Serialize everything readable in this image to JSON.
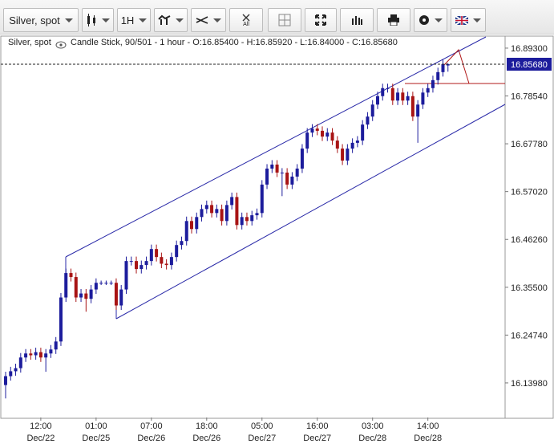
{
  "toolbar": {
    "instrument": "Silver, spot",
    "timeframe": "1H",
    "all_label": "All"
  },
  "chart_data": {
    "type": "candlestick",
    "title": "Silver, spot",
    "subtitle": "Candle Stick, 90/501 - 1 hour - O:16.85400 - H:16.85920 - L:16.84000 - C:16.85680",
    "categories": [
      null,
      null,
      null,
      null,
      null,
      null,
      null,
      {
        "time": "12:00",
        "date": "Dec/22"
      },
      null,
      null,
      null,
      null,
      null,
      null,
      null,
      null,
      null,
      null,
      {
        "time": "01:00",
        "date": "Dec/25"
      },
      null,
      null,
      null,
      null,
      null,
      null,
      null,
      null,
      null,
      null,
      {
        "time": "07:00",
        "date": "Dec/26"
      },
      null,
      null,
      null,
      null,
      null,
      null,
      null,
      null,
      null,
      null,
      {
        "time": "18:00",
        "date": "Dec/26"
      },
      null,
      null,
      null,
      null,
      null,
      null,
      null,
      null,
      null,
      null,
      {
        "time": "05:00",
        "date": "Dec/27"
      },
      null,
      null,
      null,
      null,
      null,
      null,
      null,
      null,
      null,
      null,
      {
        "time": "16:00",
        "date": "Dec/27"
      },
      null,
      null,
      null,
      null,
      null,
      null,
      null,
      null,
      null,
      null,
      {
        "time": "03:00",
        "date": "Dec/28"
      },
      null,
      null,
      null,
      null,
      null,
      null,
      null,
      null,
      null,
      null,
      {
        "time": "14:00",
        "date": "Dec/28"
      },
      null,
      null,
      null,
      null
    ],
    "open": [
      16.135,
      16.155,
      16.166,
      16.173,
      16.197,
      16.206,
      16.202,
      16.209,
      16.197,
      16.206,
      16.215,
      16.233,
      16.332,
      16.387,
      16.378,
      16.332,
      16.341,
      16.329,
      16.35,
      16.365,
      16.365,
      16.365,
      16.365,
      16.314,
      16.35,
      16.414,
      16.414,
      16.396,
      16.405,
      16.414,
      16.441,
      16.423,
      16.408,
      16.405,
      16.423,
      16.45,
      16.459,
      16.504,
      16.486,
      16.513,
      16.531,
      16.54,
      16.522,
      16.531,
      16.504,
      16.54,
      16.558,
      16.495,
      16.513,
      16.504,
      16.517,
      16.522,
      16.586,
      16.622,
      16.631,
      16.613,
      16.613,
      16.586,
      16.604,
      16.622,
      16.667,
      16.703,
      16.712,
      16.707,
      16.694,
      16.703,
      16.685,
      16.667,
      16.64,
      16.667,
      16.68,
      16.685,
      16.721,
      16.739,
      16.766,
      16.785,
      16.803,
      16.803,
      16.775,
      16.793,
      16.775,
      16.785,
      16.739,
      16.766,
      16.793,
      16.803,
      16.821,
      16.839,
      16.854
    ],
    "high": [
      16.165,
      16.176,
      16.183,
      16.207,
      16.216,
      16.216,
      16.219,
      16.219,
      16.216,
      16.225,
      16.243,
      16.342,
      16.397,
      16.397,
      16.388,
      16.351,
      16.351,
      16.36,
      16.375,
      16.37,
      16.37,
      16.37,
      16.375,
      16.36,
      16.424,
      16.424,
      16.424,
      16.415,
      16.424,
      16.451,
      16.451,
      16.433,
      16.418,
      16.433,
      16.46,
      16.469,
      16.514,
      16.514,
      16.523,
      16.541,
      16.55,
      16.55,
      16.541,
      16.541,
      16.55,
      16.568,
      16.568,
      16.523,
      16.523,
      16.527,
      16.532,
      16.596,
      16.632,
      16.641,
      16.641,
      16.623,
      16.623,
      16.614,
      16.632,
      16.677,
      16.713,
      16.722,
      16.722,
      16.717,
      16.713,
      16.713,
      16.695,
      16.677,
      16.677,
      16.69,
      16.695,
      16.731,
      16.749,
      16.776,
      16.795,
      16.813,
      16.813,
      16.813,
      16.803,
      16.803,
      16.795,
      16.795,
      16.776,
      16.803,
      16.813,
      16.831,
      16.849,
      16.867,
      16.8592
    ],
    "low": [
      16.105,
      16.145,
      16.156,
      16.163,
      16.187,
      16.192,
      16.192,
      16.187,
      16.165,
      16.196,
      16.205,
      16.223,
      16.322,
      16.368,
      16.322,
      16.322,
      16.3,
      16.319,
      16.34,
      16.36,
      16.36,
      16.36,
      16.304,
      16.304,
      16.34,
      16.404,
      16.386,
      16.386,
      16.395,
      16.404,
      16.413,
      16.398,
      16.395,
      16.395,
      16.413,
      16.44,
      16.449,
      16.476,
      16.476,
      16.503,
      16.521,
      16.512,
      16.512,
      16.494,
      16.494,
      16.53,
      16.485,
      16.485,
      16.494,
      16.494,
      16.507,
      16.512,
      16.576,
      16.612,
      16.603,
      16.56,
      16.576,
      16.576,
      16.594,
      16.612,
      16.657,
      16.693,
      16.697,
      16.684,
      16.684,
      16.675,
      16.657,
      16.63,
      16.63,
      16.657,
      16.67,
      16.675,
      16.711,
      16.729,
      16.756,
      16.775,
      16.793,
      16.765,
      16.765,
      16.765,
      16.765,
      16.729,
      16.68,
      16.756,
      16.783,
      16.793,
      16.811,
      16.829,
      16.84
    ],
    "close": [
      16.155,
      16.166,
      16.173,
      16.197,
      16.206,
      16.202,
      16.209,
      16.197,
      16.206,
      16.215,
      16.233,
      16.332,
      16.387,
      16.378,
      16.332,
      16.341,
      16.329,
      16.35,
      16.365,
      16.365,
      16.365,
      16.365,
      16.314,
      16.35,
      16.414,
      16.414,
      16.396,
      16.405,
      16.414,
      16.441,
      16.423,
      16.408,
      16.405,
      16.423,
      16.45,
      16.459,
      16.504,
      16.486,
      16.513,
      16.531,
      16.54,
      16.522,
      16.531,
      16.504,
      16.54,
      16.558,
      16.495,
      16.513,
      16.504,
      16.517,
      16.522,
      16.586,
      16.622,
      16.631,
      16.613,
      16.613,
      16.586,
      16.604,
      16.622,
      16.667,
      16.703,
      16.712,
      16.707,
      16.694,
      16.703,
      16.685,
      16.667,
      16.64,
      16.667,
      16.68,
      16.685,
      16.721,
      16.739,
      16.766,
      16.785,
      16.803,
      16.803,
      16.775,
      16.793,
      16.775,
      16.785,
      16.739,
      16.766,
      16.793,
      16.803,
      16.821,
      16.839,
      16.857,
      16.8568
    ],
    "up_color": "#1c1c9c",
    "down_color": "#a81414",
    "last_price": {
      "value": 16.8568,
      "label": "16.85680"
    },
    "ylim": [
      16.062,
      16.92
    ],
    "yticks": [
      {
        "value": 16.893,
        "label": "16.89300"
      },
      {
        "value": 16.7854,
        "label": "16.78540"
      },
      {
        "value": 16.6778,
        "label": "16.67780"
      },
      {
        "value": 16.5702,
        "label": "16.57020"
      },
      {
        "value": 16.4626,
        "label": "16.46260"
      },
      {
        "value": 16.355,
        "label": "16.35500"
      },
      {
        "value": 16.2474,
        "label": "16.24740"
      },
      {
        "value": 16.1398,
        "label": "16.13980"
      }
    ],
    "grid": false
  }
}
